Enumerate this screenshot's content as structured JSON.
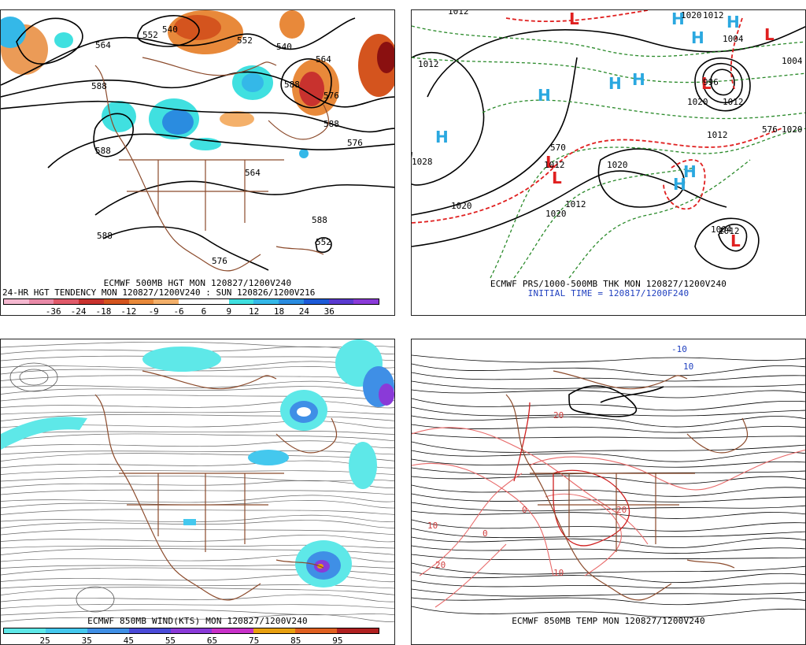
{
  "panels": {
    "p500": {
      "title": "ECMWF 500MB HGT MON 120827/1200V240",
      "subtitle": "24-HR HGT TENDENCY MON 120827/1200V240 : SUN 120826/1200V216",
      "contour_labels": [
        "564",
        "552",
        "540",
        "552",
        "540",
        "564",
        "576",
        "588",
        "588",
        "588",
        "576",
        "564",
        "588",
        "576",
        "588",
        "552",
        "588"
      ],
      "colorbar": {
        "colors": [
          "#f5b8d0",
          "#e98aa8",
          "#e05a6a",
          "#c8322e",
          "#d4541e",
          "#e8893a",
          "#f4b06a",
          "#ffffff",
          "#ffffff",
          "#40e0e0",
          "#34b8e8",
          "#2a8ce0",
          "#1c5ad8",
          "#5a3ad0",
          "#8a3ad8"
        ],
        "labels": [
          "-36",
          "-24",
          "-18",
          "-12",
          "-9",
          "-6",
          "6",
          "9",
          "12",
          "18",
          "24",
          "36"
        ]
      }
    },
    "pmslp": {
      "title": "ECMWF PRS/1000-500MB THK MON 120827/1200V240",
      "subtitle": "INITIAL TIME = 120817/1200F240",
      "pressure_labels": [
        "1012",
        "1012",
        "1004",
        "1020",
        "1028",
        "1020",
        "1020",
        "1012",
        "1020",
        "1012",
        "1020",
        "1012",
        "1004",
        "996",
        "1012",
        "1020",
        "1004",
        "1012",
        "576",
        "570",
        "1012"
      ],
      "highs": [
        "H",
        "H",
        "H",
        "H",
        "H",
        "H",
        "H",
        "H",
        "H"
      ],
      "lows": [
        "L",
        "L",
        "L",
        "L",
        "L",
        "L"
      ]
    },
    "pwind": {
      "title": "ECMWF 850MB WIND(KTS) MON 120827/1200V240",
      "colorbar": {
        "colors": [
          "#5ee8e8",
          "#44c8ee",
          "#3f8fe6",
          "#4a4ad8",
          "#8a3ad8",
          "#c830c8",
          "#e8a010",
          "#e06020",
          "#b02020"
        ],
        "labels": [
          "25",
          "35",
          "45",
          "55",
          "65",
          "75",
          "85",
          "95"
        ]
      }
    },
    "ptemp": {
      "title": "ECMWF 850MB TEMP MON 120827/1200V240",
      "contour_labels": [
        "-10",
        "10",
        "20",
        "20",
        "10",
        "20",
        "10",
        "0",
        "0"
      ]
    }
  }
}
